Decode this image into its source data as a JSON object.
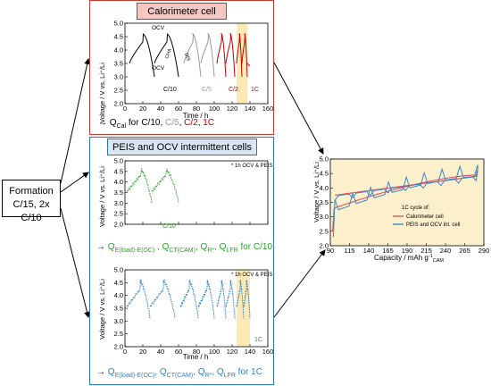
{
  "formation": {
    "line1": "Formation",
    "line2": "C/15, 2x C/10"
  },
  "calorimeter": {
    "title": "Calorimeter cell",
    "y_label": "Voltage / V vs. Li⁺/Li",
    "x_label": "Time / h",
    "x_ticks": [
      "0",
      "20",
      "40",
      "60",
      "80",
      "100",
      "120",
      "140",
      "160"
    ],
    "y_ticks": [
      "2.0",
      "2.5",
      "3.0",
      "3.5",
      "4.0",
      "4.5",
      "5.0"
    ],
    "annotations": {
      "ocv_top": "OCV",
      "ocv_bottom": "OCV",
      "cha": "CHA",
      "dis": "DIS",
      "c10": "C/10",
      "c5": "C/5",
      "c2": "C/2",
      "c1": "1C"
    },
    "q_line": {
      "arrow": "→",
      "q": "Q",
      "sub": "Cal",
      "for": " for ",
      "c10": "C/10",
      "sep1": ", ",
      "c5": "C/5",
      "sep2": ", ",
      "c2": "C/2",
      "sep3": ", ",
      "c1": "1C"
    },
    "colors": {
      "c10": "#000000",
      "c5": "#999999",
      "c2": "#c00000",
      "c1": "#c00000",
      "highlight": "#fde9b3"
    }
  },
  "peis": {
    "title": "PEIS and OCV intermittent cells",
    "top_plot": {
      "y_label": "Voltage / V vs. Li⁺/Li",
      "note": "* 1h OCV & PEIS",
      "label": "C/10",
      "y_ticks": [
        "2.0",
        "2.5",
        "3.0",
        "3.5",
        "4.0",
        "4.5",
        "5.0"
      ],
      "color": "#2e9e2e"
    },
    "green_line": {
      "arrow": "→",
      "q1": "Q",
      "s1": "E(load)-E(OC)",
      "sep1": " , ",
      "q2": "Q",
      "s2": "CT(CAM)",
      "sep2": ", ",
      "q3": "Q",
      "s3": "R*",
      "sep3": ", ",
      "q4": "Q",
      "s4": "LFR",
      "tail": " for C/10"
    },
    "bottom_plot": {
      "y_label": "Voltage / V vs. Li⁺/Li",
      "x_label": "Time / h",
      "note": "* 1h OCV & PEIS",
      "label": "1C",
      "x_ticks": [
        "0",
        "20",
        "40",
        "60",
        "80",
        "100",
        "120",
        "140",
        "160"
      ],
      "y_ticks": [
        "2.0",
        "2.5",
        "3.0",
        "3.5",
        "4.0",
        "4.5",
        "5.0"
      ],
      "color": "#2f7fbf"
    },
    "blue_line": {
      "arrow": "→",
      "q1": "Q",
      "s1": "E(load)-E(OC)",
      "sep1": ", ",
      "q2": "Q",
      "s2": "CT(CAM)",
      "sep2": ", ",
      "q3": "Q",
      "s3": "R*",
      "sep3": ", ",
      "q4": "Q",
      "s4": "LFR",
      "tail": " for 1C"
    }
  },
  "capacity_plot": {
    "y_label": "Voltage / V vs. Li⁺/Li",
    "x_label": "Capacity / mAh g",
    "x_label_sup": "-1",
    "x_label_sub": "CAM",
    "x_ticks": [
      "90",
      "115",
      "140",
      "165",
      "190",
      "215",
      "240",
      "265",
      "290"
    ],
    "y_ticks": [
      "2.0",
      "2.5",
      "3.0",
      "3.5",
      "4.0",
      "4.5",
      "5.0"
    ],
    "legend_title": "1C cycle of:",
    "legend": [
      {
        "name": "Calorimeter cell",
        "color": "#e05060"
      },
      {
        "name": "PEIS and OCV int. cell",
        "color": "#3a86c8"
      }
    ],
    "background": "#fdf0cc"
  },
  "colors": {
    "red_frame": "#c0392b",
    "blue_frame": "#2e75b6",
    "title_red_fill": "#f4c7c3",
    "title_blue_fill": "#dae6f3"
  }
}
